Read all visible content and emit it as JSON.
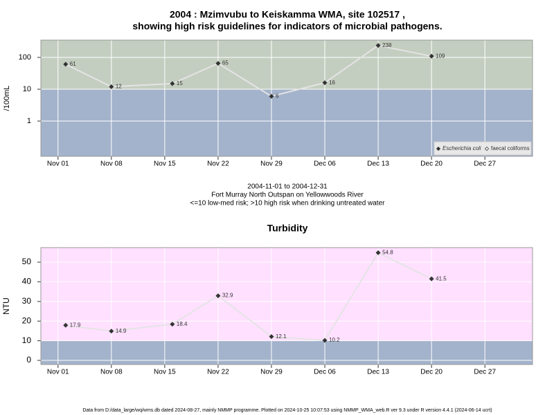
{
  "chart_data": [
    {
      "type": "line",
      "title": [
        "2004 : Mzimvubu to Keiskamma WMA, site 102517 ,",
        "showing high risk guidelines for indicators of microbial pathogens."
      ],
      "y_label": "/100mL",
      "log_scale": true,
      "grid": true,
      "legend": "lower right",
      "threshold": 10,
      "band_colors": {
        "above": "#c4cec0",
        "below": "#a3b3cb"
      },
      "x": [
        "2004-11-02",
        "2004-11-08",
        "2004-11-16",
        "2004-11-22",
        "2004-11-29",
        "2004-12-06",
        "2004-12-13",
        "2004-12-20"
      ],
      "series": [
        {
          "name": "Escherichia coli",
          "color": "#333333",
          "line_color": "#e4e4e4",
          "values": [
            61,
            12,
            15,
            65,
            6,
            16,
            238,
            109
          ]
        },
        {
          "name": "faecal coliforms",
          "color": "#333333",
          "line_color": "#e4e4e4",
          "values": [
            null,
            null,
            null,
            null,
            null,
            null,
            null,
            null
          ]
        }
      ],
      "xlim": [
        "2004-10-29T18:00Z",
        "2005-01-02T06:00Z"
      ],
      "xticks": [
        {
          "value": "2004-11-01",
          "label": "Nov 01"
        },
        {
          "value": "2004-11-08",
          "label": "Nov 08"
        },
        {
          "value": "2004-11-15",
          "label": "Nov 15"
        },
        {
          "value": "2004-11-22",
          "label": "Nov 22"
        },
        {
          "value": "2004-11-29",
          "label": "Nov 29"
        },
        {
          "value": "2004-12-06",
          "label": "Dec 06"
        },
        {
          "value": "2004-12-13",
          "label": "Dec 13"
        },
        {
          "value": "2004-12-20",
          "label": "Dec 20"
        },
        {
          "value": "2004-12-27",
          "label": "Dec 27"
        }
      ],
      "ylim": [
        0.078,
        350
      ],
      "yticks": [
        1,
        10,
        100
      ],
      "annotations": [
        "2004-11-01 to 2004-12-31",
        "Fort Murray North Outspan on Yellowwoods River",
        "<=10 low-med risk; >10 high risk when drinking untreated water"
      ]
    },
    {
      "type": "line",
      "title": [
        "Turbidity"
      ],
      "y_label": "NTU",
      "log_scale": false,
      "grid": true,
      "threshold": 10,
      "band_colors": {
        "above": "#ffe0ff",
        "below": "#a3b3cb"
      },
      "x": [
        "2004-11-02",
        "2004-11-08",
        "2004-11-16",
        "2004-11-22",
        "2004-11-29",
        "2004-12-06",
        "2004-12-13",
        "2004-12-20"
      ],
      "series": [
        {
          "name": "Turbidity",
          "color": "#333333",
          "line_color": "#e4e4e4",
          "values": [
            17.9,
            14.9,
            18.4,
            32.9,
            12.1,
            10.2,
            54.8,
            41.5
          ]
        }
      ],
      "show_legend": false,
      "xlim": [
        "2004-10-29T18:00Z",
        "2005-01-02T06:00Z"
      ],
      "xticks": [
        {
          "value": "2004-11-01",
          "label": "Nov 01"
        },
        {
          "value": "2004-11-08",
          "label": "Nov 08"
        },
        {
          "value": "2004-11-15",
          "label": "Nov 15"
        },
        {
          "value": "2004-11-22",
          "label": "Nov 22"
        },
        {
          "value": "2004-11-29",
          "label": "Nov 29"
        },
        {
          "value": "2004-12-06",
          "label": "Dec 06"
        },
        {
          "value": "2004-12-13",
          "label": "Dec 13"
        },
        {
          "value": "2004-12-20",
          "label": "Dec 20"
        },
        {
          "value": "2004-12-27",
          "label": "Dec 27"
        }
      ],
      "ylim": [
        -2.1,
        57.4
      ],
      "yticks": [
        0,
        10,
        20,
        30,
        40,
        50
      ]
    }
  ],
  "footer": "Data from D:/data_large/wq/wms.db dated 2024-08-27, mainly NMMP programme. Plotted on 2024-10-25 10:07:53 using NMMP_WMA_web.R ver 9.3 under R version 4.4.1 (2024-06-14 ucrt)"
}
